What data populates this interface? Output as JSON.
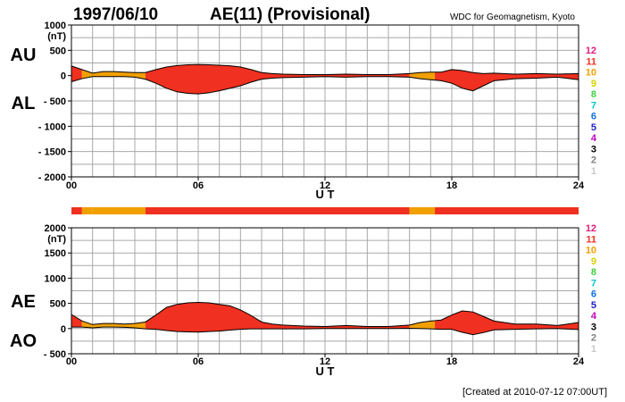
{
  "header": {
    "date": "1997/06/10",
    "title": "AE(11) (Provisional)",
    "source": "WDC for Geomagnetism, Kyoto"
  },
  "footer": {
    "created": "[Created at 2010-07-12 07:00UT]"
  },
  "colors": {
    "station_levels": [
      "#c8c8c8",
      "#808080",
      "#000000",
      "#c000c0",
      "#2020c0",
      "#1070e0",
      "#00c8c8",
      "#40d040",
      "#d8d000",
      "#f0a000",
      "#f03020",
      "#e0207a"
    ],
    "fill_red": "#f03020",
    "fill_orange": "#f0a020",
    "grid": "#a8a8a8"
  },
  "legend": {
    "station_levels": [
      "1",
      "2",
      "3",
      "4",
      "5",
      "6",
      "7",
      "8",
      "9",
      "10",
      "11",
      "12"
    ]
  },
  "chart_data": [
    {
      "type": "area",
      "title": "AE(11) (Provisional)",
      "xlabel": "U T",
      "xlim": [
        0,
        24
      ],
      "xticks": [
        "00",
        "06",
        "12",
        "18",
        "24"
      ],
      "yunit": "(nT)",
      "ylim": [
        -2000,
        1000
      ],
      "yticks": [
        "1000",
        "500",
        "0",
        "- 500",
        "- 1000",
        "- 1500",
        "- 2000"
      ],
      "series_labels": [
        "AU",
        "AL"
      ],
      "series": [
        {
          "name": "AU",
          "x": [
            0,
            0.5,
            1,
            1.5,
            2,
            2.5,
            3,
            3.5,
            4,
            4.5,
            5,
            5.5,
            6,
            6.5,
            7,
            7.5,
            8,
            8.5,
            9,
            9.5,
            10,
            11,
            12,
            13,
            14,
            15,
            16,
            16.5,
            17,
            17.5,
            18,
            18.5,
            19,
            19.5,
            20,
            21,
            22,
            23,
            24
          ],
          "values": [
            190,
            120,
            50,
            80,
            80,
            70,
            60,
            60,
            120,
            170,
            200,
            215,
            220,
            215,
            205,
            195,
            170,
            120,
            60,
            40,
            30,
            20,
            20,
            30,
            20,
            20,
            40,
            60,
            70,
            70,
            120,
            100,
            60,
            40,
            50,
            30,
            40,
            30,
            40
          ]
        },
        {
          "name": "AL",
          "x": [
            0,
            0.5,
            1,
            1.5,
            2,
            2.5,
            3,
            3.5,
            4,
            4.5,
            5,
            5.5,
            6,
            6.5,
            7,
            7.5,
            8,
            8.5,
            9,
            9.5,
            10,
            11,
            12,
            13,
            14,
            15,
            16,
            16.5,
            17,
            17.5,
            18,
            18.5,
            19,
            19.5,
            20,
            21,
            22,
            23,
            24
          ],
          "values": [
            -120,
            -60,
            -20,
            -20,
            -20,
            -20,
            -30,
            -70,
            -150,
            -250,
            -320,
            -350,
            -360,
            -340,
            -300,
            -250,
            -200,
            -130,
            -70,
            -50,
            -40,
            -30,
            -20,
            -30,
            -20,
            -20,
            -30,
            -60,
            -80,
            -100,
            -150,
            -250,
            -300,
            -200,
            -100,
            -60,
            -50,
            -30,
            -80
          ]
        }
      ],
      "station_bar": [
        {
          "from": 0,
          "to": 0.5,
          "stations": 11
        },
        {
          "from": 0.5,
          "to": 1,
          "stations": 10
        },
        {
          "from": 1,
          "to": 3.5,
          "stations": 10
        },
        {
          "from": 3.5,
          "to": 16,
          "stations": 11
        },
        {
          "from": 16,
          "to": 17.2,
          "stations": 10
        },
        {
          "from": 17.2,
          "to": 24,
          "stations": 11
        }
      ]
    },
    {
      "type": "area",
      "xlabel": "U T",
      "xlim": [
        0,
        24
      ],
      "xticks": [
        "00",
        "06",
        "12",
        "18",
        "24"
      ],
      "yunit": "(nT)",
      "ylim": [
        -500,
        2000
      ],
      "yticks": [
        "2000",
        "1500",
        "1000",
        "500",
        "0",
        "- 500"
      ],
      "series_labels": [
        "AE",
        "AO"
      ],
      "series": [
        {
          "name": "AE",
          "x": [
            0,
            0.5,
            1,
            1.5,
            2,
            2.5,
            3,
            3.5,
            4,
            4.5,
            5,
            5.5,
            6,
            6.5,
            7,
            7.5,
            8,
            8.5,
            9,
            9.5,
            10,
            11,
            12,
            13,
            14,
            15,
            16,
            16.5,
            17,
            17.5,
            18,
            18.5,
            19,
            19.5,
            20,
            21,
            22,
            23,
            24
          ],
          "values": [
            280,
            150,
            80,
            100,
            100,
            90,
            100,
            130,
            270,
            420,
            480,
            510,
            520,
            510,
            480,
            450,
            370,
            260,
            130,
            90,
            70,
            50,
            40,
            60,
            40,
            40,
            70,
            120,
            150,
            170,
            270,
            350,
            330,
            240,
            150,
            90,
            90,
            60,
            120
          ]
        },
        {
          "name": "AO",
          "x": [
            0,
            0.5,
            1,
            1.5,
            2,
            2.5,
            3,
            3.5,
            4,
            4.5,
            5,
            5.5,
            6,
            6.5,
            7,
            7.5,
            8,
            8.5,
            9,
            9.5,
            10,
            11,
            12,
            13,
            14,
            15,
            16,
            16.5,
            17,
            17.5,
            18,
            18.5,
            19,
            19.5,
            20,
            21,
            22,
            23,
            24
          ],
          "values": [
            30,
            30,
            15,
            30,
            30,
            25,
            15,
            -5,
            -15,
            -40,
            -60,
            -65,
            -70,
            -60,
            -50,
            -30,
            -15,
            -5,
            -5,
            -5,
            -5,
            -5,
            0,
            0,
            0,
            0,
            5,
            0,
            -5,
            -15,
            -15,
            -75,
            -120,
            -80,
            -25,
            -15,
            -5,
            0,
            -20
          ]
        }
      ]
    }
  ]
}
